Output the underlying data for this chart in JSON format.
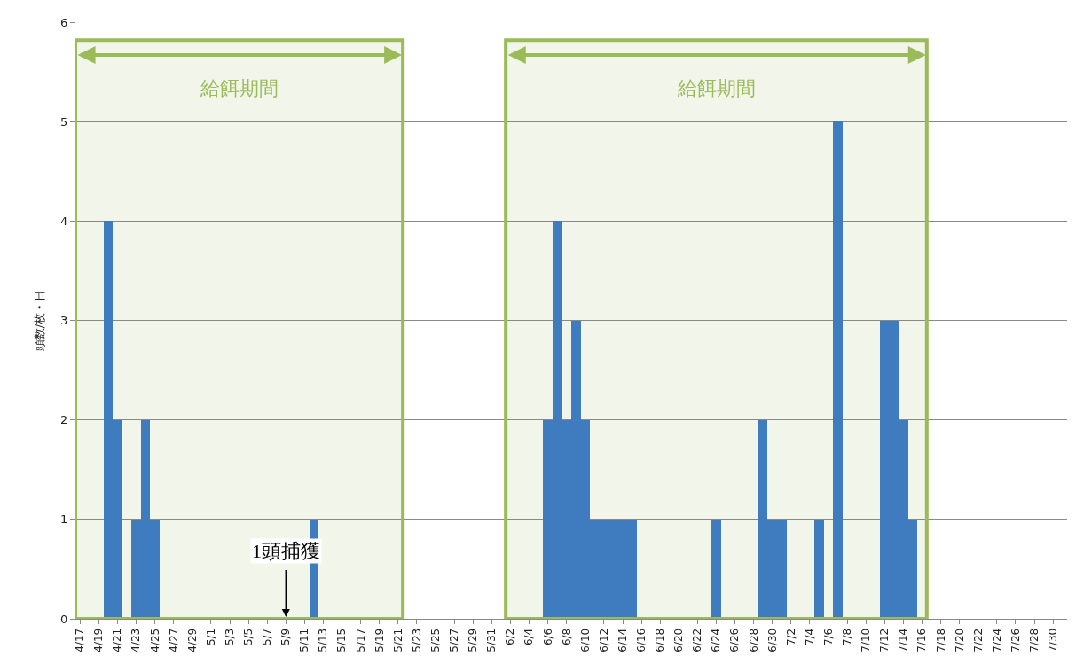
{
  "chart_data": {
    "type": "bar",
    "ylabel": "頭数/枚・日",
    "categories": [
      "4/17",
      null,
      "4/19",
      null,
      "4/21",
      null,
      "4/23",
      null,
      "4/25",
      null,
      "4/27",
      null,
      "4/29",
      null,
      "5/1",
      null,
      "5/3",
      null,
      "5/5",
      null,
      "5/7",
      null,
      "5/9",
      null,
      "5/11",
      null,
      "5/13",
      null,
      "5/15",
      null,
      "5/17",
      null,
      "5/19",
      null,
      "5/21",
      null,
      "5/23",
      null,
      "5/25",
      null,
      "5/27",
      null,
      "5/29",
      null,
      "5/31",
      null,
      "6/2",
      null,
      "6/4",
      null,
      "6/6",
      null,
      "6/8",
      null,
      "6/10",
      null,
      "6/12",
      null,
      "6/14",
      null,
      "6/16",
      null,
      "6/18",
      null,
      "6/20",
      null,
      "6/22",
      null,
      "6/24",
      null,
      "6/26",
      null,
      "6/28",
      null,
      "6/30",
      null,
      "7/2",
      null,
      "7/4",
      null,
      "7/6",
      null,
      "7/8",
      null,
      "7/10",
      null,
      "7/12",
      null,
      "7/14",
      null,
      "7/16",
      null,
      "7/18",
      null,
      "7/20",
      null,
      "7/22",
      null,
      "7/24",
      null,
      "7/26",
      null,
      "7/28",
      null,
      "7/30",
      null
    ],
    "values": [
      0,
      0,
      0,
      4,
      2,
      0,
      1,
      2,
      1,
      0,
      0,
      0,
      0,
      0,
      0,
      0,
      0,
      0,
      0,
      0,
      0,
      0,
      0,
      0,
      0,
      1,
      0,
      0,
      0,
      0,
      0,
      0,
      0,
      0,
      0,
      0,
      0,
      0,
      0,
      0,
      0,
      0,
      0,
      0,
      0,
      0,
      0,
      0,
      0,
      0,
      2,
      4,
      2,
      3,
      2,
      1,
      1,
      1,
      1,
      1,
      0,
      0,
      0,
      0,
      0,
      0,
      0,
      0,
      1,
      0,
      0,
      0,
      0,
      2,
      1,
      1,
      0,
      0,
      0,
      1,
      0,
      5,
      0,
      0,
      0,
      0,
      3,
      3,
      2,
      1,
      0,
      0,
      0,
      0,
      0,
      0,
      0,
      0,
      0,
      0,
      0,
      0,
      0,
      0,
      0,
      0
    ],
    "color": "#3f7cbf",
    "ylim": [
      0,
      6
    ],
    "yticks": [
      0,
      1,
      2,
      3,
      4,
      5,
      6
    ],
    "grid": "y",
    "legend": false,
    "bands": [
      {
        "axis": "x",
        "from": "4/17",
        "to": "5/21",
        "label": "給餌期間",
        "color": "#9bbb59"
      },
      {
        "axis": "x",
        "from": "6/2",
        "to": "7/16",
        "label": "給餌期間",
        "color": "#9bbb59"
      }
    ],
    "annotations": [
      {
        "text": "1頭捕獲",
        "x": "5/9",
        "y": 0
      }
    ]
  }
}
